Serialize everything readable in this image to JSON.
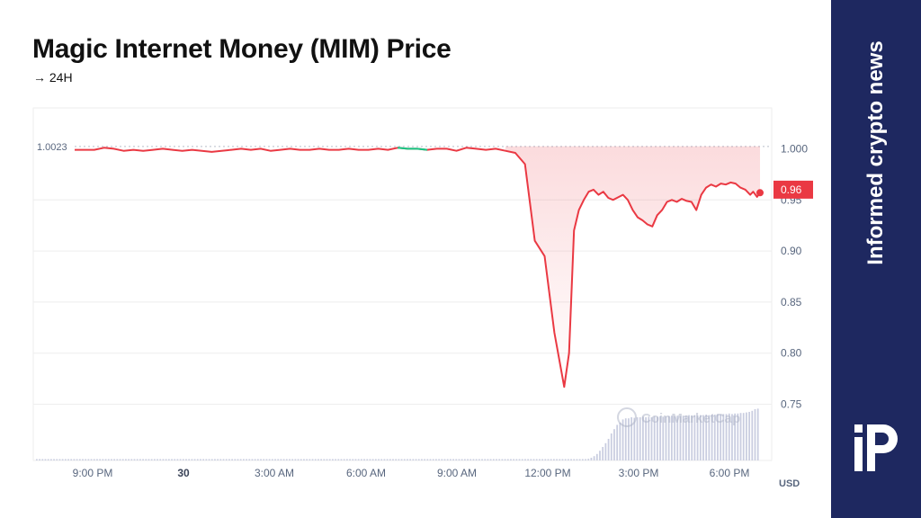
{
  "header": {
    "title": "Magic Internet Money (MIM) Price",
    "subtitle_arrow": "→",
    "subtitle": "24H"
  },
  "sidebar": {
    "brand_text": "Informed crypto news",
    "logo_icon": "ip-logo-icon",
    "background": "#1e2860"
  },
  "chart_data": {
    "type": "line",
    "x_ticks": [
      "9:00 PM",
      "30",
      "3:00 AM",
      "6:00 AM",
      "9:00 AM",
      "12:00 PM",
      "3:00 PM",
      "6:00 PM"
    ],
    "y_ticks": [
      "1.000",
      "0.95",
      "0.90",
      "0.85",
      "0.80",
      "0.75"
    ],
    "ylim": [
      0.695,
      1.04
    ],
    "currency": "USD",
    "open_label": "1.0023",
    "open_value": 1.0023,
    "current_label": "0.96",
    "current_value": 0.96,
    "watermark": "CoinMarketCap",
    "colors": {
      "down": "#ea3943",
      "up": "#16c784",
      "grid": "#eeeeee",
      "volume": "#c9cde0"
    },
    "price_series": [
      [
        0,
        0.999
      ],
      [
        1,
        0.999
      ],
      [
        2,
        0.999
      ],
      [
        3,
        1.001
      ],
      [
        4,
        1.0
      ],
      [
        5,
        0.998
      ],
      [
        6,
        0.999
      ],
      [
        7,
        0.998
      ],
      [
        8,
        0.999
      ],
      [
        9,
        1.0
      ],
      [
        10,
        0.999
      ],
      [
        11,
        0.998
      ],
      [
        12,
        0.999
      ],
      [
        13,
        0.998
      ],
      [
        14,
        0.997
      ],
      [
        15,
        0.998
      ],
      [
        16,
        0.999
      ],
      [
        17,
        1.0
      ],
      [
        18,
        0.999
      ],
      [
        19,
        1.0
      ],
      [
        20,
        0.998
      ],
      [
        21,
        0.999
      ],
      [
        22,
        1.0
      ],
      [
        23,
        0.999
      ],
      [
        24,
        0.999
      ],
      [
        25,
        1.0
      ],
      [
        26,
        0.999
      ],
      [
        27,
        0.999
      ],
      [
        28,
        1.0
      ],
      [
        29,
        0.999
      ],
      [
        30,
        0.999
      ],
      [
        31,
        1.0
      ],
      [
        32,
        0.999
      ],
      [
        33,
        1.001
      ],
      [
        34,
        1.0
      ],
      [
        35,
        1.0
      ],
      [
        36,
        0.999
      ],
      [
        37,
        1.0
      ],
      [
        38,
        1.0
      ],
      [
        39,
        0.998
      ],
      [
        40,
        1.001
      ],
      [
        41,
        1.0
      ],
      [
        42,
        0.999
      ],
      [
        43,
        1.0
      ],
      [
        44,
        0.998
      ],
      [
        45,
        0.996
      ],
      [
        46,
        0.985
      ],
      [
        47,
        0.91
      ],
      [
        48,
        0.895
      ],
      [
        49,
        0.82
      ],
      [
        50,
        0.767
      ],
      [
        50.5,
        0.8
      ],
      [
        51,
        0.92
      ],
      [
        51.5,
        0.94
      ],
      [
        52,
        0.95
      ],
      [
        52.5,
        0.958
      ],
      [
        53,
        0.96
      ],
      [
        53.5,
        0.955
      ],
      [
        54,
        0.958
      ],
      [
        54.5,
        0.952
      ],
      [
        55,
        0.95
      ],
      [
        56,
        0.955
      ],
      [
        56.5,
        0.95
      ],
      [
        57,
        0.94
      ],
      [
        57.5,
        0.933
      ],
      [
        58,
        0.93
      ],
      [
        58.5,
        0.926
      ],
      [
        59,
        0.924
      ],
      [
        59.5,
        0.935
      ],
      [
        60,
        0.94
      ],
      [
        60.5,
        0.948
      ],
      [
        61,
        0.95
      ],
      [
        61.5,
        0.948
      ],
      [
        62,
        0.951
      ],
      [
        62.5,
        0.949
      ],
      [
        63,
        0.948
      ],
      [
        63.5,
        0.94
      ],
      [
        64,
        0.955
      ],
      [
        64.5,
        0.962
      ],
      [
        65,
        0.965
      ],
      [
        65.5,
        0.963
      ],
      [
        66,
        0.966
      ],
      [
        66.5,
        0.965
      ],
      [
        67,
        0.967
      ],
      [
        67.5,
        0.966
      ],
      [
        68,
        0.962
      ],
      [
        68.5,
        0.96
      ],
      [
        69,
        0.955
      ],
      [
        69.3,
        0.958
      ],
      [
        69.7,
        0.953
      ],
      [
        70,
        0.957
      ]
    ],
    "up_segments": [
      [
        33,
        36
      ]
    ],
    "volume": [
      0.02,
      0.02,
      0.02,
      0.02,
      0.02,
      0.02,
      0.02,
      0.02,
      0.02,
      0.02,
      0.02,
      0.02,
      0.02,
      0.02,
      0.02,
      0.02,
      0.02,
      0.02,
      0.02,
      0.02,
      0.02,
      0.02,
      0.02,
      0.02,
      0.02,
      0.02,
      0.02,
      0.02,
      0.02,
      0.02,
      0.02,
      0.02,
      0.02,
      0.02,
      0.02,
      0.02,
      0.02,
      0.02,
      0.02,
      0.02,
      0.02,
      0.02,
      0.02,
      0.02,
      0.02,
      0.02,
      0.02,
      0.02,
      0.02,
      0.02,
      0.02,
      0.02,
      0.02,
      0.02,
      0.02,
      0.02,
      0.02,
      0.02,
      0.02,
      0.02,
      0.02,
      0.02,
      0.02,
      0.02,
      0.02,
      0.02,
      0.02,
      0.02,
      0.02,
      0.02,
      0.02,
      0.02,
      0.02,
      0.02,
      0.02,
      0.02,
      0.02,
      0.02,
      0.02,
      0.02,
      0.02,
      0.02,
      0.02,
      0.02,
      0.02,
      0.02,
      0.02,
      0.02,
      0.02,
      0.02,
      0.02,
      0.02,
      0.02,
      0.02,
      0.02,
      0.02,
      0.02,
      0.02,
      0.02,
      0.02,
      0.02,
      0.02,
      0.02,
      0.02,
      0.02,
      0.02,
      0.02,
      0.02,
      0.02,
      0.02,
      0.02,
      0.02,
      0.02,
      0.02,
      0.02,
      0.02,
      0.02,
      0.02,
      0.02,
      0.02,
      0.02,
      0.02,
      0.02,
      0.02,
      0.02,
      0.02,
      0.02,
      0.02,
      0.02,
      0.02,
      0.02,
      0.02,
      0.02,
      0.02,
      0.02,
      0.02,
      0.02,
      0.02,
      0.02,
      0.02,
      0.02,
      0.02,
      0.02,
      0.02,
      0.02,
      0.02,
      0.02,
      0.02,
      0.02,
      0.02,
      0.02,
      0.02,
      0.02,
      0.02,
      0.02,
      0.02,
      0.02,
      0.02,
      0.02,
      0.02,
      0.02,
      0.02,
      0.02,
      0.02,
      0.02,
      0.02,
      0.02,
      0.02,
      0.02,
      0.02,
      0.02,
      0.02,
      0.02,
      0.02,
      0.02,
      0.02,
      0.02,
      0.02,
      0.02,
      0.02,
      0.02,
      0.02,
      0.02,
      0.02,
      0.02,
      0.02,
      0.02,
      0.02,
      0.02,
      0.02,
      0.02,
      0.02,
      0.03,
      0.05,
      0.08,
      0.12,
      0.18,
      0.25,
      0.32,
      0.4,
      0.5,
      0.58,
      0.66,
      0.7,
      0.76,
      0.78,
      0.78,
      0.8,
      0.79,
      0.8,
      0.8,
      0.81,
      0.8,
      0.81,
      0.8,
      0.82,
      0.81,
      0.82,
      0.81,
      0.82,
      0.82,
      0.83,
      0.82,
      0.83,
      0.82,
      0.83,
      0.83,
      0.84,
      0.83,
      0.84,
      0.83,
      0.84,
      0.84,
      0.85,
      0.84,
      0.85,
      0.85,
      0.86,
      0.85,
      0.86,
      0.86,
      0.87,
      0.86,
      0.87,
      0.87,
      0.88,
      0.88,
      0.89,
      0.9,
      0.92,
      0.95,
      0.96
    ]
  }
}
